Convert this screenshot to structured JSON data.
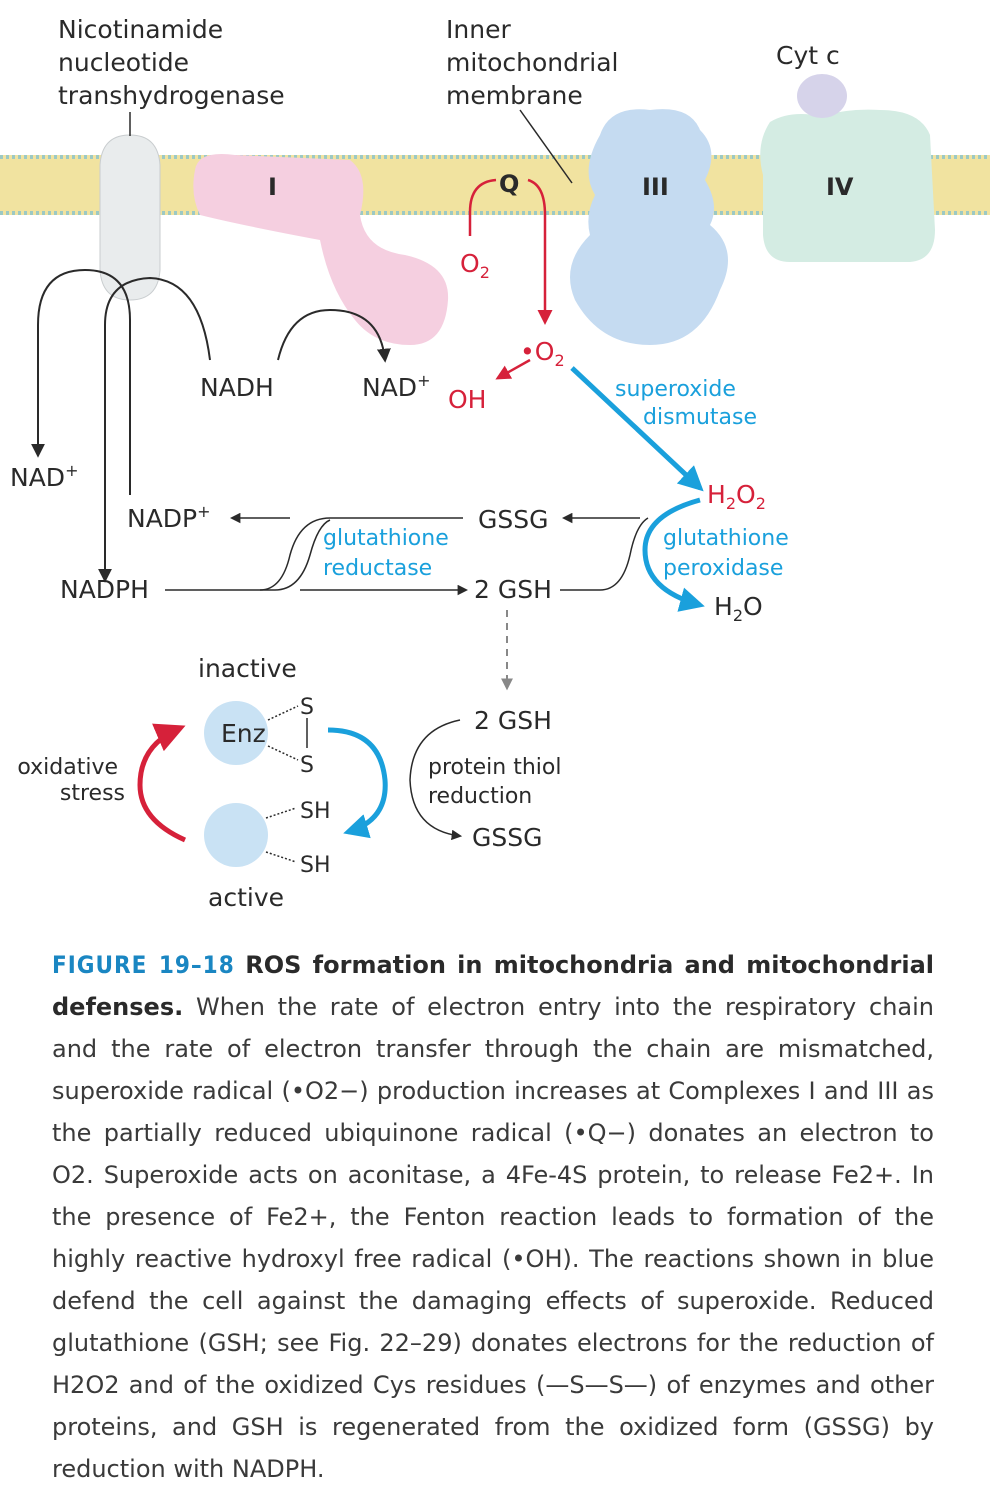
{
  "diagram": {
    "labels": {
      "transhydrogenase": [
        "Nicotinamide",
        "nucleotide",
        "transhydrogenase"
      ],
      "membrane": [
        "Inner",
        "mitochondrial",
        "membrane"
      ],
      "cytc": "Cyt c",
      "complex_I": "I",
      "complex_III": "III",
      "complex_IV": "IV",
      "Q": "Q",
      "O2": "O2",
      "superoxide_radical": "•O2",
      "OH": "OH",
      "NADH": "NADH",
      "NAD_plus_top": "NAD+",
      "NAD_plus_left": "NAD+",
      "NADP_plus": "NADP+",
      "NADPH": "NADPH",
      "GSSG_top": "GSSG",
      "GSH_2_top": "2 GSH",
      "glutathione_reductase": [
        "glutathione",
        "reductase"
      ],
      "superoxide_dismutase": [
        "superoxide",
        "dismutase"
      ],
      "H2O2": "H2O2",
      "glutathione_peroxidase": [
        "glutathione",
        "peroxidase"
      ],
      "H2O": "H2O",
      "inactive": "inactive",
      "active": "active",
      "Enz": "Enz",
      "S_top": "S",
      "S_bottom": "S",
      "SH_top": "SH",
      "SH_bottom": "SH",
      "oxidative_stress": [
        "oxidative",
        "stress"
      ],
      "GSH_2_bottom": "2 GSH",
      "protein_thiol_reduction": [
        "protein thiol",
        "reduction"
      ],
      "GSSG_bottom": "GSSG"
    },
    "colors": {
      "membrane": "#f1e3a0",
      "complex_I": "#f5cfe0",
      "transhydrogenase": "#e9eced",
      "complex_III": "#c5dbf1",
      "complex_IV": "#d4ece3",
      "cytc": "#d6d3ea",
      "enzyme": "#c9e2f4",
      "red": "#d6213a",
      "blue": "#1aa0dc",
      "dark": "#2a2a2a"
    }
  },
  "caption": {
    "figure_number": "FIGURE 19–18",
    "title": "ROS formation in mitochondria and mitochondrial defenses.",
    "body": "When the rate of electron entry into the respiratory chain and the rate of electron transfer through the chain are mismatched, superoxide radical (•O2−) production increases at Complexes I and III as the partially reduced ubiquinone radical (•Q−) donates an electron to O2. Superoxide acts on aconitase, a 4Fe-4S protein, to release Fe2+. In the presence of Fe2+, the Fenton reaction leads to formation of the highly reactive hydroxyl free radical (•OH). The reactions shown in blue defend the cell against the damaging effects of superoxide. Reduced glutathione (GSH; see Fig. 22–29) donates electrons for the reduction of H2O2 and of the oxidized Cys residues (—S—S—) of enzymes and other proteins, and GSH is regenerated from the oxidized form (GSSG) by reduction with NADPH."
  }
}
